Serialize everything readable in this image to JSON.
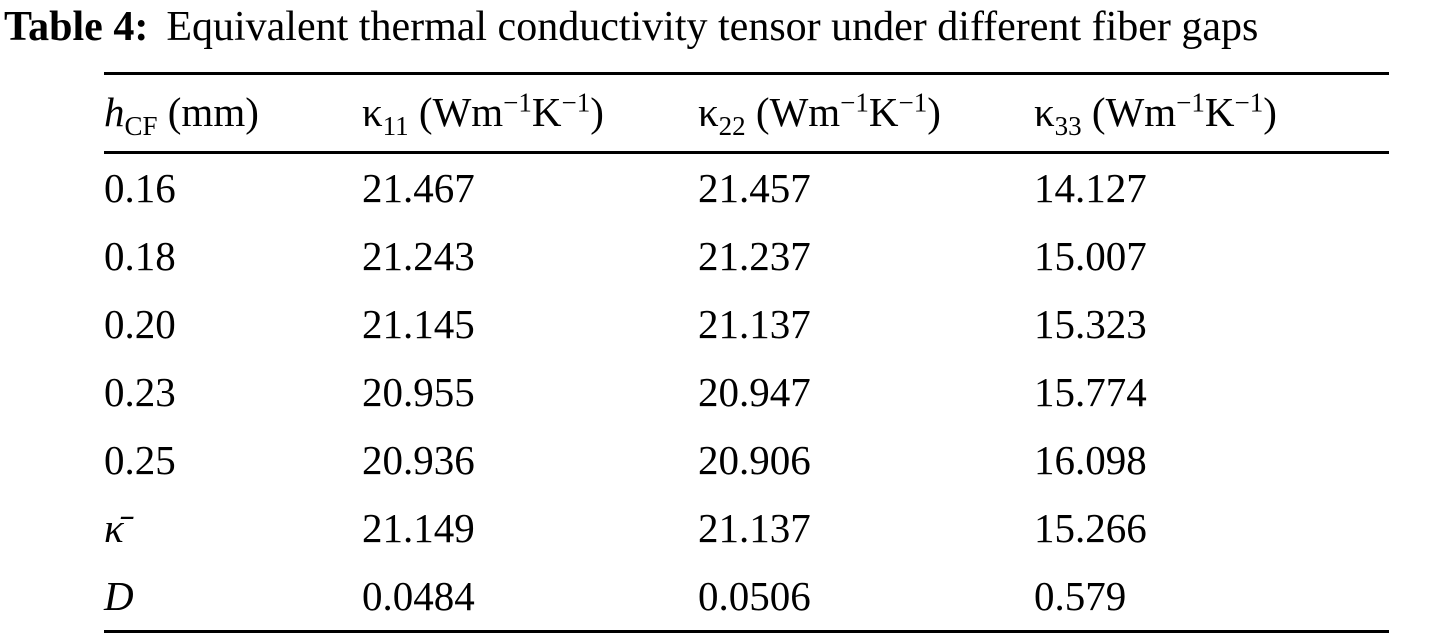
{
  "title": {
    "label": "Table 4:",
    "text": "Equivalent thermal conductivity tensor under different fiber gaps"
  },
  "table": {
    "headers": {
      "col1": {
        "symbol": "h",
        "sub": "CF",
        "unit": " (mm)"
      },
      "col2": {
        "symbol": "κ",
        "sub": "11",
        "u1": " (Wm",
        "sup1": "−1",
        "u2": "K",
        "sup2": "−1",
        "u3": ")"
      },
      "col3": {
        "symbol": "κ",
        "sub": "22",
        "u1": " (Wm",
        "sup1": "−1",
        "u2": "K",
        "sup2": "−1",
        "u3": ")"
      },
      "col4": {
        "symbol": "κ",
        "sub": "33",
        "u1": " (Wm",
        "sup1": "−1",
        "u2": "K",
        "sup2": "−1",
        "u3": ")"
      }
    },
    "rows": [
      {
        "label": "0.16",
        "k11": "21.467",
        "k22": "21.457",
        "k33": "14.127"
      },
      {
        "label": "0.18",
        "k11": "21.243",
        "k22": "21.237",
        "k33": "15.007"
      },
      {
        "label": "0.20",
        "k11": "21.145",
        "k22": "21.137",
        "k33": "15.323"
      },
      {
        "label": "0.23",
        "k11": "20.955",
        "k22": "20.947",
        "k33": "15.774"
      },
      {
        "label": "0.25",
        "k11": "20.936",
        "k22": "20.906",
        "k33": "16.098"
      },
      {
        "label": "κ̄",
        "k11": "21.149",
        "k22": "21.137",
        "k33": "15.266"
      },
      {
        "label": "D",
        "k11": "0.0484",
        "k22": "0.0506",
        "k33": "0.579"
      }
    ]
  },
  "chart_data": {
    "type": "table",
    "title": "Table 4: Equivalent thermal conductivity tensor under different fiber gaps",
    "columns": [
      "h_CF (mm)",
      "κ11 (Wm−1K−1)",
      "κ22 (Wm−1K−1)",
      "κ33 (Wm−1K−1)"
    ],
    "rows": [
      [
        "0.16",
        21.467,
        21.457,
        14.127
      ],
      [
        "0.18",
        21.243,
        21.237,
        15.007
      ],
      [
        "0.20",
        21.145,
        21.137,
        15.323
      ],
      [
        "0.23",
        20.955,
        20.947,
        15.774
      ],
      [
        "0.25",
        20.936,
        20.906,
        16.098
      ],
      [
        "κ̄",
        21.149,
        21.137,
        15.266
      ],
      [
        "D",
        0.0484,
        0.0506,
        0.579
      ]
    ]
  }
}
